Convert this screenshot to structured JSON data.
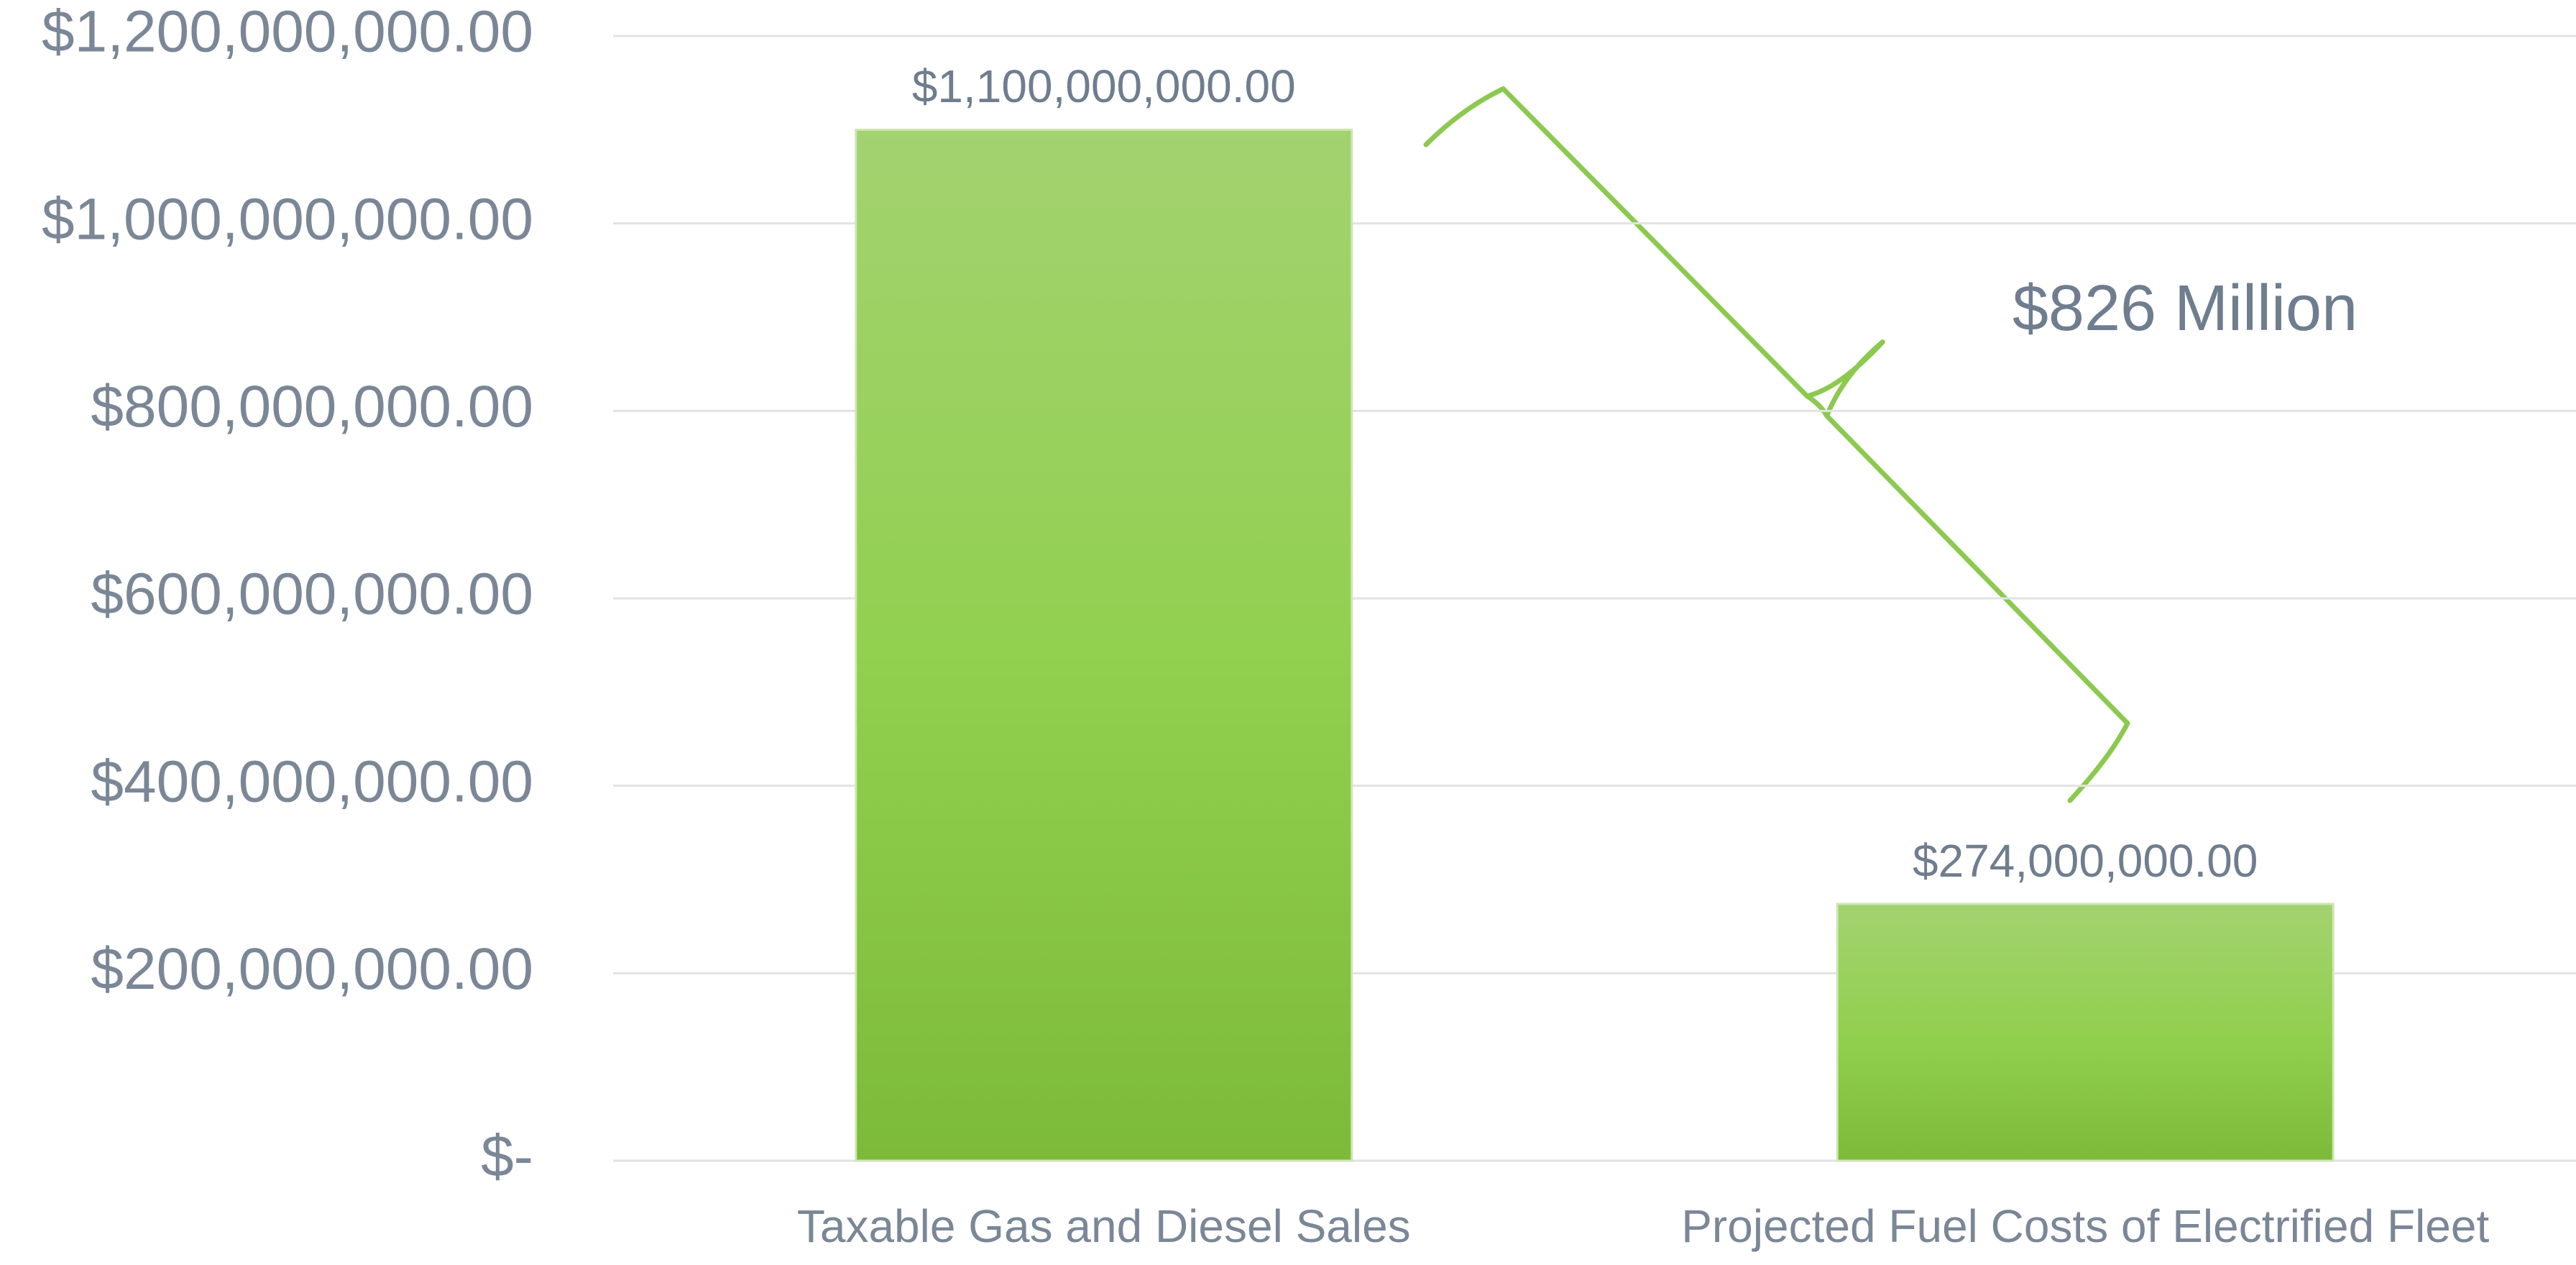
{
  "chart_data": {
    "type": "bar",
    "categories": [
      "Taxable Gas and Diesel Sales",
      "Projected Fuel Costs of Electrified Fleet"
    ],
    "values": [
      1100000000,
      274000000
    ],
    "value_labels": [
      "$1,100,000,000.00",
      "$274,000,000.00"
    ],
    "color": "#92d050",
    "ylim": [
      0,
      1200000000
    ],
    "yticks": [
      {
        "value": 0,
        "label": "$-"
      },
      {
        "value": 200000000,
        "label": "$200,000,000.00"
      },
      {
        "value": 400000000,
        "label": "$400,000,000.00"
      },
      {
        "value": 600000000,
        "label": "$600,000,000.00"
      },
      {
        "value": 800000000,
        "label": "$800,000,000.00"
      },
      {
        "value": 1000000000,
        "label": "$1,000,000,000.00"
      },
      {
        "value": 1200000000,
        "label": "$1,200,000,000.00"
      }
    ],
    "grid": true,
    "annotations": [
      "$826 Million"
    ]
  }
}
